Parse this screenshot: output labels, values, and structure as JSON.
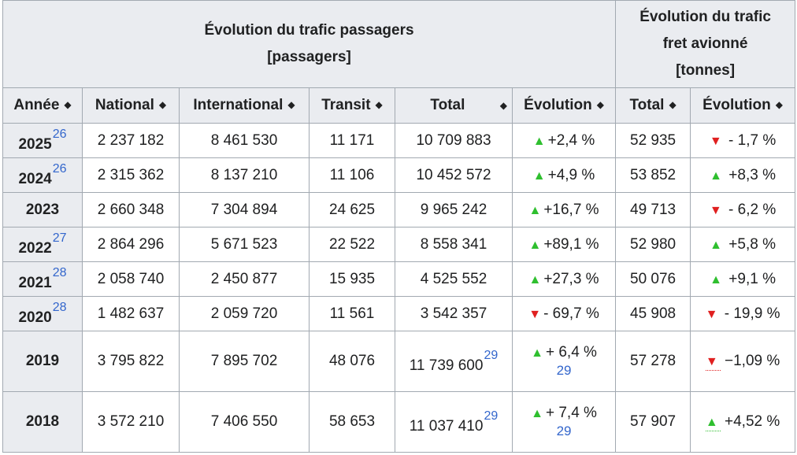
{
  "header": {
    "passengers_title": "Évolution du trafic passagers",
    "passengers_unit": "[passagers]",
    "freight_title_line1": "Évolution du trafic",
    "freight_title_line2": "fret avionné",
    "freight_unit": "[tonnes]"
  },
  "columns": [
    "Année",
    "National",
    "International",
    "Transit",
    "Total",
    "Évolution",
    "Total",
    "Évolution"
  ],
  "sort_icon": "sort-icon",
  "rows": [
    {
      "year": "2025",
      "year_ref": "26",
      "national": "2 237 182",
      "international": "8 461 530",
      "transit": "11 171",
      "total": "10 709 883",
      "total_ref": "",
      "evo": "+2,4 %",
      "evo_dir": "up",
      "evo_ref": "",
      "fret": "52 935",
      "fret_evo": "- 1,7 %",
      "fret_dir": "down"
    },
    {
      "year": "2024",
      "year_ref": "26",
      "national": "2 315 362",
      "international": "8 137 210",
      "transit": "11 106",
      "total": "10 452 572",
      "total_ref": "",
      "evo": "+4,9 %",
      "evo_dir": "up",
      "evo_ref": "",
      "fret": "53 852",
      "fret_evo": "+8,3 %",
      "fret_dir": "up"
    },
    {
      "year": "2023",
      "year_ref": "",
      "national": "2 660 348",
      "international": "7 304 894",
      "transit": "24 625",
      "total": "9 965 242",
      "total_ref": "",
      "evo": "+16,7 %",
      "evo_dir": "up",
      "evo_ref": "",
      "fret": "49 713",
      "fret_evo": "- 6,2 %",
      "fret_dir": "down"
    },
    {
      "year": "2022",
      "year_ref": "27",
      "national": "2 864 296",
      "international": "5 671 523",
      "transit": "22 522",
      "total": "8 558 341",
      "total_ref": "",
      "evo": "+89,1 %",
      "evo_dir": "up",
      "evo_ref": "",
      "fret": "52 980",
      "fret_evo": "+5,8 %",
      "fret_dir": "up"
    },
    {
      "year": "2021",
      "year_ref": "28",
      "national": "2 058 740",
      "international": "2 450 877",
      "transit": "15 935",
      "total": "4 525 552",
      "total_ref": "",
      "evo": "+27,3 %",
      "evo_dir": "up",
      "evo_ref": "",
      "fret": "50 076",
      "fret_evo": "+9,1 %",
      "fret_dir": "up"
    },
    {
      "year": "2020",
      "year_ref": "28",
      "national": "1 482 637",
      "international": "2 059 720",
      "transit": "11 561",
      "total": "3 542 357",
      "total_ref": "",
      "evo": "- 69,7 %",
      "evo_dir": "down",
      "evo_ref": "",
      "fret": "45 908",
      "fret_evo": "- 19,9 %",
      "fret_dir": "down"
    },
    {
      "year": "2019",
      "year_ref": "",
      "national": "3 795 822",
      "international": "7 895 702",
      "transit": "48 076",
      "total": "11 739 600",
      "total_ref": "29",
      "evo": "+ 6,4 %",
      "evo_dir": "up",
      "evo_ref": "29",
      "fret": "57 278",
      "fret_evo": "−1,09 %",
      "fret_dir": "down"
    },
    {
      "year": "2018",
      "year_ref": "",
      "national": "3 572 210",
      "international": "7 406 550",
      "transit": "58 653",
      "total": "11 037 410",
      "total_ref": "29",
      "evo": "+ 7,4 %",
      "evo_dir": "up",
      "evo_ref": "29",
      "fret": "57 907",
      "fret_evo": "+4,52 %",
      "fret_dir": "up"
    }
  ],
  "colors": {
    "header_bg": "#eaecf0",
    "border": "#a2a9b1",
    "up": "#2fbf2f",
    "down": "#e02020",
    "link": "#3366cc"
  }
}
